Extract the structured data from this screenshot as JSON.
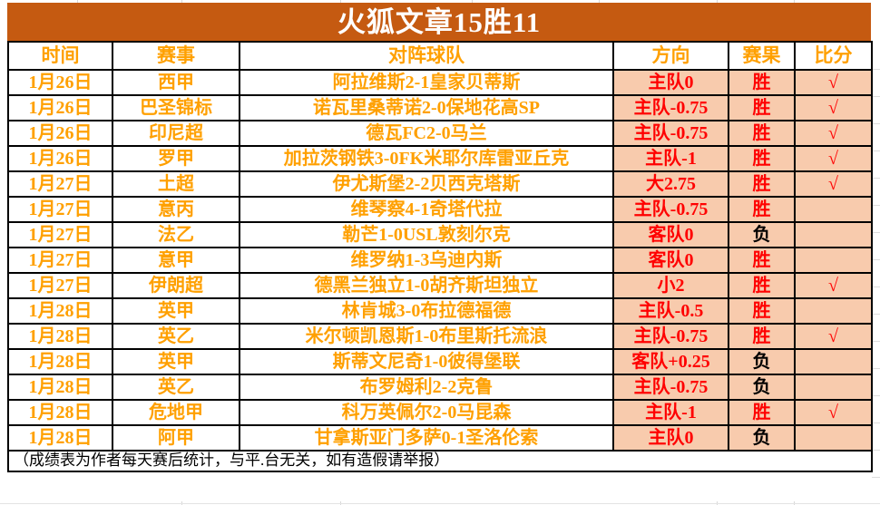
{
  "title": "火狐文章15胜11",
  "table": {
    "columns": [
      "时间",
      "赛事",
      "对阵球队",
      "方向",
      "赛果",
      "比分"
    ],
    "rows": [
      {
        "date": "1月26日",
        "league": "西甲",
        "match": "阿拉维斯2-1皇家贝蒂斯",
        "direction": "主队0",
        "result": "胜",
        "score": "√"
      },
      {
        "date": "1月26日",
        "league": "巴圣锦标",
        "match": "诺瓦里桑蒂诺2-0保地花高SP",
        "direction": "主队-0.75",
        "result": "胜",
        "score": "√"
      },
      {
        "date": "1月26日",
        "league": "印尼超",
        "match": "德瓦FC2-0马兰",
        "direction": "主队-0.75",
        "result": "胜",
        "score": "√"
      },
      {
        "date": "1月26日",
        "league": "罗甲",
        "match": "加拉茨钢铁3-0FK米耶尔库雷亚丘克",
        "direction": "主队-1",
        "result": "胜",
        "score": "√"
      },
      {
        "date": "1月27日",
        "league": "土超",
        "match": "伊尤斯堡2-2贝西克塔斯",
        "direction": "大2.75",
        "result": "胜",
        "score": "√"
      },
      {
        "date": "1月27日",
        "league": "意丙",
        "match": "维琴察4-1奇塔代拉",
        "direction": "主队-0.75",
        "result": "胜",
        "score": ""
      },
      {
        "date": "1月27日",
        "league": "法乙",
        "match": "勒芒1-0USL敦刻尔克",
        "direction": "客队0",
        "result": "负",
        "score": ""
      },
      {
        "date": "1月27日",
        "league": "意甲",
        "match": "维罗纳1-3乌迪内斯",
        "direction": "客队0",
        "result": "胜",
        "score": ""
      },
      {
        "date": "1月27日",
        "league": "伊朗超",
        "match": "德黑兰独立1-0胡齐斯坦独立",
        "direction": "小2",
        "result": "胜",
        "score": "√"
      },
      {
        "date": "1月28日",
        "league": "英甲",
        "match": "林肯城3-0布拉德福德",
        "direction": "主队-0.5",
        "result": "胜",
        "score": ""
      },
      {
        "date": "1月28日",
        "league": "英乙",
        "match": "米尔顿凯恩斯1-0布里斯托流浪",
        "direction": "主队-0.75",
        "result": "胜",
        "score": "√"
      },
      {
        "date": "1月28日",
        "league": "英甲",
        "match": "斯蒂文尼奇1-0彼得堡联",
        "direction": "客队+0.25",
        "result": "负",
        "score": ""
      },
      {
        "date": "1月28日",
        "league": "英乙",
        "match": "布罗姆利2-2克鲁",
        "direction": "主队-0.75",
        "result": "负",
        "score": ""
      },
      {
        "date": "1月28日",
        "league": "危地甲",
        "match": "科万英佩尔2-0马昆森",
        "direction": "主队-1",
        "result": "胜",
        "score": "√"
      },
      {
        "date": "1月28日",
        "league": "阿甲",
        "match": "甘拿斯亚门多萨0-1圣洛伦索",
        "direction": "主队0",
        "result": "负",
        "score": ""
      }
    ],
    "win_label": "胜",
    "loss_label": "负",
    "footer_note": "（成绩表为作者每天赛后统计，与平.台无关，如有造假请举报）"
  },
  "colors": {
    "title_bg": "#C55A11",
    "title_text": "#FFFFFF",
    "header_text": "#FFA000",
    "left_cell_text": "#FFA000",
    "highlight_bg": "#F8CBAD",
    "win_text": "#FF0000",
    "loss_text": "#000000",
    "check_text": "#FF0000",
    "border": "#000000"
  }
}
